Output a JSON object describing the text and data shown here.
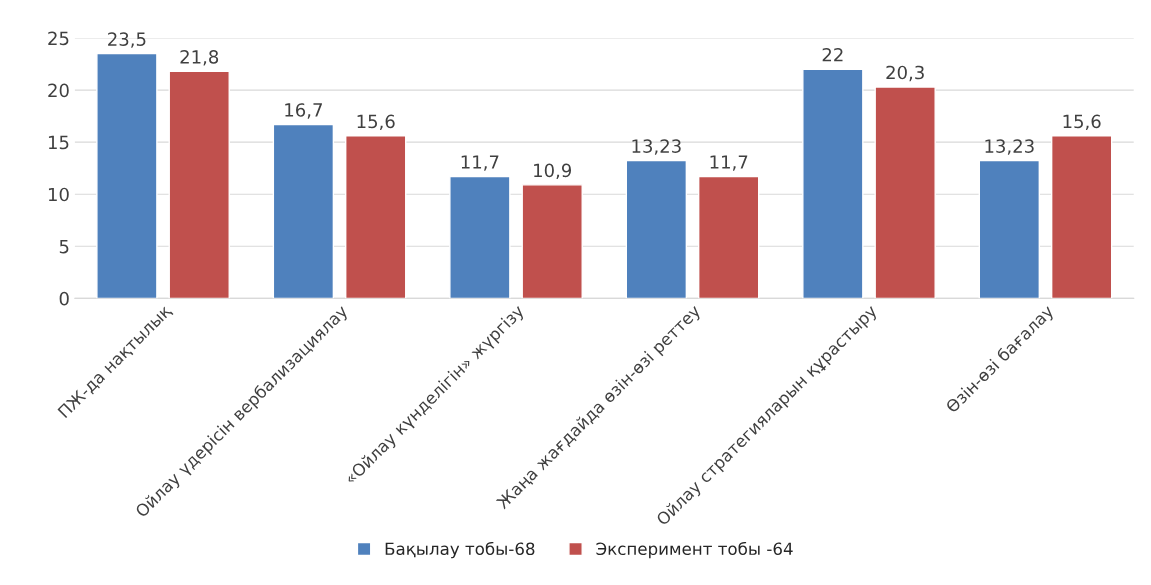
{
  "chart_data": {
    "type": "bar",
    "categories": [
      "ПЖ-да нақтылық",
      "Ойлау үдерісін вербализациялау",
      "«Ойлау күнделігін» жүргізу",
      "Жаңа жағдайда өзін-өзі реттеу",
      "Ойлау стратегияларын құрастыру",
      "Өзін-өзі бағалау"
    ],
    "series": [
      {
        "name": "Бақылау тобы-68",
        "color": "#4f81bd",
        "values": [
          23.5,
          16.7,
          11.7,
          13.23,
          22,
          13.23
        ],
        "value_labels": [
          "23,5",
          "16,7",
          "11,7",
          "13,23",
          "22",
          "13,23"
        ]
      },
      {
        "name": "Эксперимент тобы -64",
        "color": "#c0504d",
        "values": [
          21.8,
          15.6,
          10.9,
          11.7,
          20.3,
          15.6
        ],
        "value_labels": [
          "21,8",
          "15,6",
          "10,9",
          "11,7",
          "20,3",
          "15,6"
        ]
      }
    ],
    "ylim": [
      0,
      25
    ],
    "yticks": [
      0,
      5,
      10,
      15,
      20,
      25
    ],
    "grid": "y",
    "legend": "bottom"
  }
}
